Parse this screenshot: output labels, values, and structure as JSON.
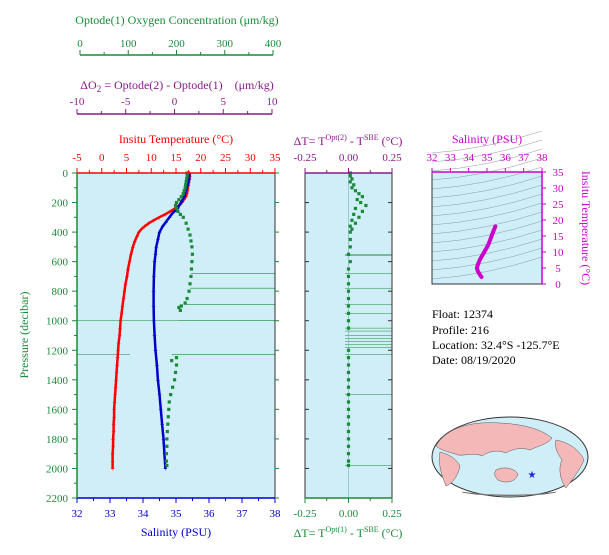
{
  "colors": {
    "oxygen": "#1a8a3a",
    "delta_o2": "#8a1a8a",
    "temperature": "#ff0000",
    "salinity": "#0000cc",
    "delta_t": "#8a1a8a",
    "salinity_inset": "#cc00cc",
    "pressure_axis": "#1a8a3a",
    "plot_bg": "#cfeef7"
  },
  "info": {
    "float": "Float:  12374",
    "profile": "Profile:  216",
    "location": "Location:  32.4°S  -125.7°E",
    "date": "Date:  08/19/2020"
  },
  "chart_data": [
    {
      "type": "line",
      "id": "profile-panel",
      "y_axis": {
        "label": "Pressure (decibar)",
        "range": [
          0,
          2200
        ],
        "reversed": true,
        "ticks": [
          "0",
          "200",
          "400",
          "600",
          "800",
          "1000",
          "1200",
          "1400",
          "1600",
          "1800",
          "2000",
          "2200"
        ]
      },
      "axes": {
        "oxygen": {
          "label": "Optode(1) Oxygen Concentration (μm/kg)",
          "range": [
            0,
            400
          ],
          "ticks": [
            "0",
            "100",
            "200",
            "300",
            "400"
          ]
        },
        "delta_o2": {
          "label_prefix": "ΔO",
          "label_sub": "2",
          "label_rest": " = Optode(2) - Optode(1)",
          "label_units": "(μm/kg)",
          "range": [
            -10,
            10
          ],
          "ticks": [
            "-10",
            "-5",
            "0",
            "5",
            "10"
          ]
        },
        "temperature": {
          "label": "Insitu Temperature (°C)",
          "range": [
            -5,
            35
          ],
          "ticks": [
            "-5",
            "0",
            "5",
            "10",
            "15",
            "20",
            "25",
            "30",
            "35"
          ]
        },
        "salinity": {
          "label": "Salinity (PSU)",
          "range": [
            32,
            38
          ],
          "ticks": [
            "32",
            "33",
            "34",
            "35",
            "36",
            "37",
            "38"
          ]
        }
      },
      "series": [
        {
          "name": "Temperature",
          "axis": "temperature",
          "points": [
            [
              17.8,
              0
            ],
            [
              17.8,
              20
            ],
            [
              17.7,
              40
            ],
            [
              17.6,
              60
            ],
            [
              17.5,
              80
            ],
            [
              17.4,
              100
            ],
            [
              17.3,
              120
            ],
            [
              17.2,
              140
            ],
            [
              17,
              160
            ],
            [
              16.6,
              180
            ],
            [
              16.2,
              200
            ],
            [
              15.6,
              220
            ],
            [
              14.8,
              240
            ],
            [
              13.8,
              260
            ],
            [
              12.8,
              280
            ],
            [
              11.6,
              300
            ],
            [
              10.5,
              320
            ],
            [
              9.5,
              340
            ],
            [
              8.7,
              360
            ],
            [
              8,
              380
            ],
            [
              7.5,
              400
            ],
            [
              7.1,
              430
            ],
            [
              6.7,
              460
            ],
            [
              6.3,
              500
            ],
            [
              5.9,
              550
            ],
            [
              5.6,
              600
            ],
            [
              5.3,
              650
            ],
            [
              5.1,
              700
            ],
            [
              4.8,
              750
            ],
            [
              4.6,
              800
            ],
            [
              4.4,
              850
            ],
            [
              4.2,
              900
            ],
            [
              4,
              950
            ],
            [
              3.8,
              1000
            ],
            [
              3.7,
              1050
            ],
            [
              3.6,
              1100
            ],
            [
              3.4,
              1150
            ],
            [
              3.3,
              1200
            ],
            [
              3.2,
              1250
            ],
            [
              3.1,
              1300
            ],
            [
              3,
              1350
            ],
            [
              2.9,
              1400
            ],
            [
              2.8,
              1450
            ],
            [
              2.7,
              1500
            ],
            [
              2.6,
              1550
            ],
            [
              2.5,
              1600
            ],
            [
              2.5,
              1650
            ],
            [
              2.4,
              1700
            ],
            [
              2.4,
              1750
            ],
            [
              2.3,
              1800
            ],
            [
              2.3,
              1850
            ],
            [
              2.2,
              1900
            ],
            [
              2.2,
              1950
            ],
            [
              2.2,
              2000
            ]
          ]
        },
        {
          "name": "Salinity",
          "axis": "salinity",
          "points": [
            [
              35.4,
              0
            ],
            [
              35.4,
              40
            ],
            [
              35.35,
              80
            ],
            [
              35.3,
              120
            ],
            [
              35.25,
              160
            ],
            [
              35.15,
              200
            ],
            [
              35.05,
              240
            ],
            [
              34.9,
              270
            ],
            [
              34.8,
              300
            ],
            [
              34.7,
              330
            ],
            [
              34.6,
              360
            ],
            [
              34.5,
              400
            ],
            [
              34.45,
              450
            ],
            [
              34.4,
              500
            ],
            [
              34.38,
              550
            ],
            [
              34.35,
              600
            ],
            [
              34.33,
              700
            ],
            [
              34.32,
              800
            ],
            [
              34.32,
              900
            ],
            [
              34.33,
              1000
            ],
            [
              34.35,
              1100
            ],
            [
              34.38,
              1200
            ],
            [
              34.42,
              1300
            ],
            [
              34.45,
              1400
            ],
            [
              34.5,
              1500
            ],
            [
              34.54,
              1600
            ],
            [
              34.58,
              1700
            ],
            [
              34.62,
              1800
            ],
            [
              34.65,
              1900
            ],
            [
              34.68,
              2000
            ]
          ]
        },
        {
          "name": "Oxygen",
          "axis": "oxygen",
          "points": [
            [
              222,
              0
            ],
            [
              222,
              20
            ],
            [
              221,
              40
            ],
            [
              220,
              60
            ],
            [
              219,
              80
            ],
            [
              218,
              100
            ],
            [
              216,
              120
            ],
            [
              214,
              140
            ],
            [
              210,
              160
            ],
            [
              205,
              180
            ],
            [
              200,
              200
            ],
            [
              198,
              220
            ],
            [
              200,
              240
            ],
            [
              203,
              260
            ],
            [
              208,
              280
            ],
            [
              214,
              300
            ],
            [
              220,
              340
            ],
            [
              224,
              380
            ],
            [
              228,
              420
            ],
            [
              230,
              460
            ],
            [
              232,
              500
            ],
            [
              233,
              550
            ],
            [
              232,
              600
            ],
            [
              231,
              650
            ],
            [
              230,
              700
            ],
            [
              228,
              750
            ],
            [
              226,
              800
            ],
            [
              222,
              850
            ],
            [
              218,
              880
            ],
            [
              210,
              900
            ],
            [
              205,
              910
            ],
            [
              208,
              930
            ],
            [
              200,
              1250
            ],
            [
              190,
              1270
            ],
            [
              200,
              1300
            ],
            [
              198,
              1350
            ],
            [
              196,
              1400
            ],
            [
              192,
              1450
            ],
            [
              188,
              1500
            ],
            [
              185,
              1550
            ],
            [
              184,
              1600
            ],
            [
              183,
              1650
            ],
            [
              182,
              1700
            ],
            [
              181,
              1750
            ],
            [
              180,
              1800
            ],
            [
              180,
              1850
            ],
            [
              179,
              1900
            ],
            [
              179,
              1950
            ],
            [
              180,
              1980
            ]
          ]
        }
      ],
      "oxygen_drift_lines": [
        [
          230,
          680
        ],
        [
          228,
          780
        ],
        [
          215,
          890
        ],
        [
          205,
          1000
        ],
        [
          190,
          1230
        ]
      ]
    },
    {
      "type": "scatter",
      "id": "delta-t-panel",
      "top_axis": {
        "label_prefix": "ΔT= T",
        "label_sup1": "Opt(2)",
        "label_mid": " - T",
        "label_sup2": "SBE",
        "label_units": " (°C)",
        "range": [
          -0.25,
          0.25
        ],
        "ticks": [
          "-0.25",
          "0.00",
          "0.25"
        ]
      },
      "bottom_axis": {
        "label_prefix": "ΔT= T",
        "label_sup1": "Opt(1)",
        "label_mid": " - T",
        "label_sup2": "SBE",
        "label_units": " (°C)",
        "range": [
          -0.25,
          0.25
        ],
        "ticks": [
          "-0.25",
          "0.00",
          "0.25"
        ]
      },
      "points": [
        [
          0.01,
          0
        ],
        [
          0.01,
          20
        ],
        [
          0.02,
          40
        ],
        [
          0.01,
          60
        ],
        [
          0.03,
          80
        ],
        [
          0.02,
          100
        ],
        [
          0.04,
          120
        ],
        [
          0.06,
          140
        ],
        [
          0.08,
          160
        ],
        [
          0.05,
          180
        ],
        [
          0.07,
          200
        ],
        [
          0.1,
          220
        ],
        [
          0.04,
          240
        ],
        [
          0.08,
          260
        ],
        [
          0.03,
          280
        ],
        [
          0.06,
          300
        ],
        [
          0.02,
          320
        ],
        [
          0.04,
          340
        ],
        [
          0.01,
          360
        ],
        [
          0.02,
          380
        ],
        [
          0.01,
          400
        ],
        [
          0.01,
          450
        ],
        [
          0.01,
          500
        ],
        [
          0.0,
          550
        ],
        [
          0.01,
          600
        ],
        [
          0.0,
          650
        ],
        [
          0.0,
          700
        ],
        [
          0.0,
          750
        ],
        [
          0.0,
          800
        ],
        [
          0.0,
          850
        ],
        [
          0.0,
          900
        ],
        [
          0.0,
          950
        ],
        [
          0.0,
          1000
        ],
        [
          0.0,
          1050
        ],
        [
          0.0,
          1200
        ],
        [
          0.0,
          1250
        ],
        [
          0.0,
          1300
        ],
        [
          0.0,
          1350
        ],
        [
          0.0,
          1400
        ],
        [
          0.0,
          1450
        ],
        [
          0.0,
          1500
        ],
        [
          0.0,
          1550
        ],
        [
          0.0,
          1600
        ],
        [
          0.0,
          1650
        ],
        [
          0.0,
          1700
        ],
        [
          0.0,
          1750
        ],
        [
          0.0,
          1800
        ],
        [
          0.0,
          1850
        ],
        [
          0.0,
          1900
        ],
        [
          0.0,
          1950
        ],
        [
          0.0,
          1980
        ]
      ],
      "drift_lines": [
        550,
        560,
        680,
        780,
        890,
        950,
        1050,
        1070,
        1100,
        1120,
        1140,
        1160,
        1180,
        1230,
        1500,
        1980
      ]
    },
    {
      "type": "line",
      "id": "ts-inset",
      "x_axis": {
        "label": "Salinity (PSU)",
        "range": [
          32,
          38
        ],
        "ticks": [
          "32",
          "33",
          "34",
          "35",
          "36",
          "37",
          "38"
        ]
      },
      "y_axis": {
        "label": "Insitu Temperature (°C)",
        "range": [
          0,
          35
        ],
        "ticks": [
          "0",
          "5",
          "10",
          "15",
          "20",
          "25",
          "30",
          "35"
        ]
      },
      "points": [
        [
          34.7,
          2.2
        ],
        [
          34.6,
          3
        ],
        [
          34.5,
          4
        ],
        [
          34.45,
          5
        ],
        [
          34.5,
          6
        ],
        [
          34.6,
          7.5
        ],
        [
          34.75,
          9
        ],
        [
          34.9,
          10.5
        ],
        [
          35.05,
          12
        ],
        [
          35.15,
          13.5
        ],
        [
          35.25,
          15
        ],
        [
          35.35,
          16.5
        ],
        [
          35.42,
          17.5
        ],
        [
          35.45,
          18
        ]
      ]
    }
  ]
}
